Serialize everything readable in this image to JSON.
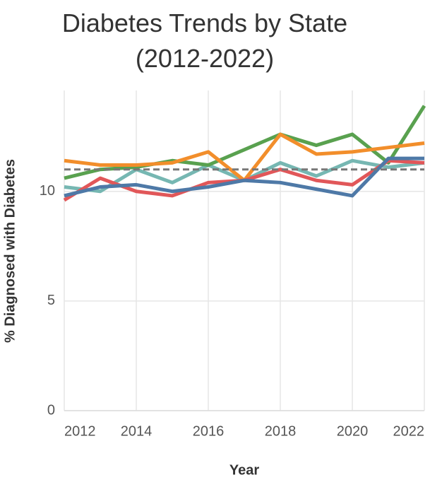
{
  "chart_data": {
    "type": "line",
    "title": "Diabetes Trends by State (2012-2022)",
    "x_label": "Year",
    "y_label": "% Diagnosed with Diabetes",
    "x": [
      2012,
      2013,
      2014,
      2015,
      2016,
      2017,
      2018,
      2019,
      2020,
      2021,
      2022
    ],
    "series": [
      {
        "color": "#76b7b2",
        "values": [
          10.2,
          10.0,
          11.0,
          10.4,
          11.2,
          10.5,
          11.3,
          10.7,
          11.4,
          11.1,
          11.3
        ]
      },
      {
        "color": "#59a14f",
        "values": [
          10.6,
          11.0,
          11.1,
          11.4,
          11.2,
          11.9,
          12.6,
          12.1,
          12.6,
          11.3,
          13.9
        ]
      },
      {
        "color": "#f28e2b",
        "values": [
          11.4,
          11.2,
          11.2,
          11.3,
          11.8,
          10.5,
          12.6,
          11.7,
          11.8,
          12.0,
          12.2
        ]
      },
      {
        "color": "#e15759",
        "values": [
          9.6,
          10.6,
          10.0,
          9.8,
          10.4,
          10.5,
          11.0,
          10.5,
          10.3,
          11.4,
          11.3
        ]
      },
      {
        "color": "#4e79a7",
        "values": [
          9.8,
          10.2,
          10.3,
          10.0,
          10.2,
          10.5,
          10.4,
          10.1,
          9.8,
          11.5,
          11.5
        ]
      }
    ],
    "reference_line": {
      "value": 11.0,
      "color": "#777777"
    },
    "xlim": [
      2012,
      2022
    ],
    "xticks": [
      2012,
      2014,
      2016,
      2018,
      2020,
      2022
    ],
    "ylim": [
      0,
      14.6
    ],
    "yticks": [
      0,
      5,
      10
    ],
    "grid": true
  }
}
